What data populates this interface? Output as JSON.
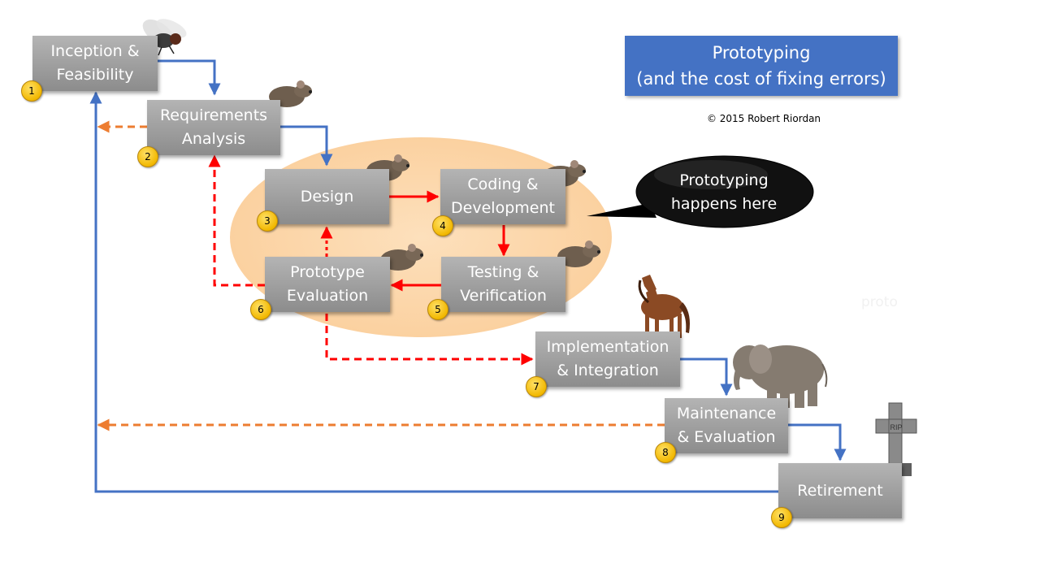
{
  "title": {
    "line1": "Prototyping",
    "line2": "(and the cost of fixing errors)"
  },
  "copyright": "© 2015  Robert Riordan",
  "callout": {
    "line1": "Prototyping",
    "line2": "happens here"
  },
  "watermark": "proto",
  "stages": [
    {
      "number": "1",
      "line1": "Inception &",
      "line2": "Feasibility",
      "animal": "fly"
    },
    {
      "number": "2",
      "line1": "Requirements",
      "line2": "Analysis",
      "animal": "mouse"
    },
    {
      "number": "3",
      "line1": "Design",
      "line2": "",
      "animal": "mouse"
    },
    {
      "number": "4",
      "line1": "Coding &",
      "line2": "Development",
      "animal": "mouse"
    },
    {
      "number": "5",
      "line1": "Testing &",
      "line2": "Verification",
      "animal": "mouse"
    },
    {
      "number": "6",
      "line1": "Prototype",
      "line2": "Evaluation",
      "animal": "mouse"
    },
    {
      "number": "7",
      "line1": "Implementation",
      "line2": "& Integration",
      "animal": "horse"
    },
    {
      "number": "8",
      "line1": "Maintenance",
      "line2": "& Evaluation",
      "animal": "elephant"
    },
    {
      "number": "9",
      "line1": "Retirement",
      "line2": "",
      "animal": "gravestone"
    }
  ],
  "gravestone_text": "RIP",
  "colors": {
    "stage": "#a6a6a6",
    "forward": "#4472c4",
    "feedback": "#ed7d31",
    "prototype": "#ff0000",
    "zone": "#fbd5a5",
    "badge": "#f2b800"
  }
}
